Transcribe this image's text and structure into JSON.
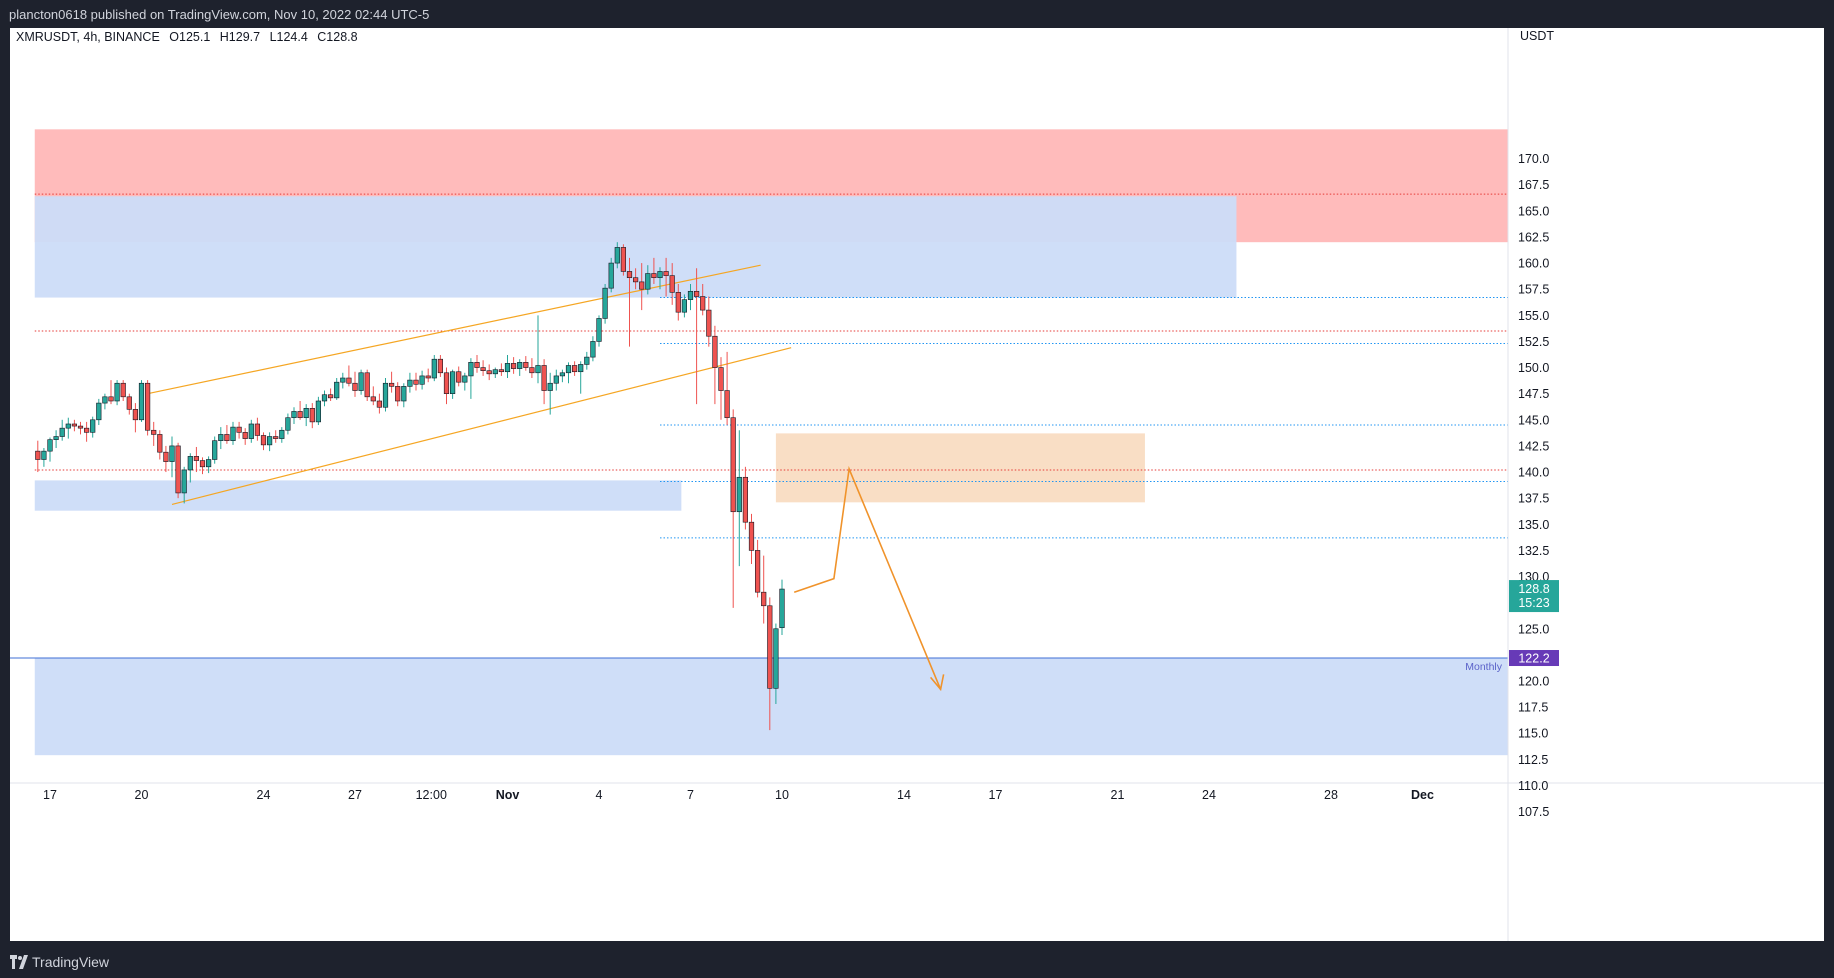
{
  "header": {
    "publish_line": "plancton0618 published on TradingView.com, Nov 10, 2022 02:44 UTC-5"
  },
  "footer": {
    "brand": "TradingView"
  },
  "legend": {
    "symbol": "XMRUSDT, 4h, BINANCE",
    "open": "O125.1",
    "high": "H129.7",
    "low": "L124.4",
    "close": "C128.8"
  },
  "chart_data": {
    "type": "candlestick",
    "symbol": "XMRUSDT",
    "interval": "4h",
    "exchange": "BINANCE",
    "currency_label": "USDT",
    "ylim": [
      104.5,
      172.8
    ],
    "y_ticks": [
      "107.5",
      "110.0",
      "112.5",
      "115.0",
      "117.5",
      "120.0",
      "122.5",
      "125.0",
      "127.5",
      "130.0",
      "132.5",
      "135.0",
      "137.5",
      "140.0",
      "142.5",
      "145.0",
      "147.5",
      "150.0",
      "152.5",
      "155.0",
      "157.5",
      "160.0",
      "162.5",
      "165.0",
      "167.5",
      "170.0"
    ],
    "x_ticks": [
      {
        "label": "17",
        "day": 0
      },
      {
        "label": "20",
        "day": 3
      },
      {
        "label": "24",
        "day": 7
      },
      {
        "label": "27",
        "day": 10
      },
      {
        "label": "12:00",
        "day": 12.5
      },
      {
        "label": "Nov",
        "day": 15
      },
      {
        "label": "4",
        "day": 18
      },
      {
        "label": "7",
        "day": 21
      },
      {
        "label": "10",
        "day": 24
      },
      {
        "label": "14",
        "day": 28
      },
      {
        "label": "17",
        "day": 31
      },
      {
        "label": "21",
        "day": 35
      },
      {
        "label": "24",
        "day": 38
      },
      {
        "label": "28",
        "day": 42
      },
      {
        "label": "Dec",
        "day": 45
      }
    ],
    "current_price": {
      "value": 128.8,
      "label": "128.8",
      "countdown": "15:23",
      "color": "#26a69a"
    },
    "monthly_level": {
      "value": 122.2,
      "label": "122.2",
      "name": "Monthly",
      "color": "#673ab7"
    },
    "zones": [
      {
        "y1": 162.0,
        "y2": 172.8,
        "d1": -0.5,
        "d2": 48.4,
        "color": "#ffb7b7"
      },
      {
        "y1": 156.7,
        "y2": 166.4,
        "d1": -0.5,
        "d2": 38.9,
        "color": "#ccdcf8"
      },
      {
        "y1": 136.3,
        "y2": 139.2,
        "d1": -0.5,
        "d2": 20.7,
        "color": "#ccdcf8"
      },
      {
        "y1": 112.9,
        "y2": 122.2,
        "d1": -0.5,
        "d2": 48.4,
        "color": "#ccdcf8"
      },
      {
        "y1": 137.1,
        "y2": 143.7,
        "d1": 23.8,
        "d2": 35.9,
        "color": "#f9dcc2"
      }
    ],
    "levels": [
      {
        "y": 166.6,
        "d1": -0.5,
        "style": "dotted",
        "color": "#e53935"
      },
      {
        "y": 153.5,
        "d1": -0.5,
        "style": "dotted",
        "color": "#e53935"
      },
      {
        "y": 140.2,
        "d1": -0.5,
        "style": "dotted",
        "color": "#e53935"
      },
      {
        "y": 156.7,
        "d1": 20.0,
        "style": "dotted",
        "color": "#2196f3"
      },
      {
        "y": 152.3,
        "d1": 20.0,
        "style": "dotted",
        "color": "#2196f3"
      },
      {
        "y": 144.5,
        "d1": 20.0,
        "style": "dotted",
        "color": "#2196f3"
      },
      {
        "y": 139.1,
        "d1": 20.0,
        "style": "dotted",
        "color": "#2196f3"
      },
      {
        "y": 133.7,
        "d1": 20.0,
        "style": "dotted",
        "color": "#2196f3"
      }
    ],
    "channel_lines": [
      {
        "d1": 3.2,
        "y1": 147.5,
        "d2": 23.3,
        "y2": 159.8
      },
      {
        "d1": 4.0,
        "y1": 136.9,
        "d2": 24.3,
        "y2": 151.9
      }
    ],
    "projection_path": [
      [
        24.4,
        128.5
      ],
      [
        25.7,
        129.8
      ],
      [
        26.2,
        140.3
      ],
      [
        29.2,
        119.2
      ]
    ],
    "candles": [
      [
        -0.4,
        142.0,
        143.0,
        140.0,
        141.2
      ],
      [
        -0.2,
        141.2,
        142.3,
        140.5,
        142.0
      ],
      [
        0.0,
        142.0,
        143.3,
        141.0,
        143.1
      ],
      [
        0.2,
        143.1,
        144.0,
        142.3,
        143.4
      ],
      [
        0.4,
        143.4,
        145.0,
        143.0,
        144.2
      ],
      [
        0.6,
        144.2,
        145.2,
        143.2,
        144.6
      ],
      [
        0.8,
        144.6,
        145.0,
        143.9,
        144.4
      ],
      [
        1.0,
        144.4,
        144.8,
        143.6,
        144.2
      ],
      [
        1.2,
        144.2,
        144.8,
        142.9,
        143.8
      ],
      [
        1.4,
        143.8,
        145.3,
        143.3,
        145.0
      ],
      [
        1.6,
        145.0,
        147.0,
        144.5,
        146.6
      ],
      [
        1.8,
        146.6,
        147.5,
        146.0,
        147.2
      ],
      [
        2.0,
        147.2,
        148.8,
        146.5,
        146.8
      ],
      [
        2.2,
        146.8,
        148.8,
        146.4,
        148.5
      ],
      [
        2.4,
        148.5,
        148.8,
        146.8,
        147.2
      ],
      [
        2.6,
        147.2,
        147.5,
        145.5,
        146.0
      ],
      [
        2.8,
        146.0,
        146.6,
        143.8,
        145.0
      ],
      [
        3.0,
        145.0,
        148.8,
        144.8,
        148.5
      ],
      [
        3.2,
        148.5,
        148.8,
        143.5,
        144.0
      ],
      [
        3.4,
        144.0,
        144.8,
        142.5,
        143.6
      ],
      [
        3.6,
        143.6,
        144.0,
        141.2,
        141.9
      ],
      [
        3.8,
        141.9,
        142.5,
        140.0,
        141.0
      ],
      [
        4.0,
        141.0,
        143.4,
        139.5,
        142.5
      ],
      [
        4.2,
        142.5,
        142.8,
        137.5,
        138.0
      ],
      [
        4.4,
        138.0,
        140.5,
        137.0,
        140.2
      ],
      [
        4.6,
        140.2,
        141.8,
        139.0,
        141.5
      ],
      [
        4.8,
        141.5,
        142.4,
        140.0,
        141.1
      ],
      [
        5.0,
        141.1,
        141.4,
        139.8,
        140.5
      ],
      [
        5.2,
        140.5,
        141.5,
        139.9,
        141.2
      ],
      [
        5.4,
        141.2,
        143.4,
        140.8,
        143.0
      ],
      [
        5.6,
        143.0,
        144.3,
        142.2,
        143.6
      ],
      [
        5.8,
        143.6,
        144.5,
        142.7,
        143.0
      ],
      [
        6.0,
        143.0,
        144.8,
        142.6,
        144.3
      ],
      [
        6.2,
        144.3,
        144.8,
        143.2,
        143.8
      ],
      [
        6.4,
        143.8,
        144.2,
        142.6,
        143.2
      ],
      [
        6.6,
        143.2,
        145.0,
        142.8,
        144.6
      ],
      [
        6.8,
        144.6,
        145.2,
        143.0,
        143.5
      ],
      [
        7.0,
        143.5,
        143.8,
        142.1,
        142.6
      ],
      [
        7.2,
        142.6,
        143.8,
        142.0,
        143.4
      ],
      [
        7.4,
        143.4,
        144.0,
        142.8,
        143.2
      ],
      [
        7.6,
        143.2,
        144.3,
        142.8,
        144.0
      ],
      [
        7.8,
        144.0,
        145.6,
        143.6,
        145.2
      ],
      [
        8.0,
        145.2,
        146.2,
        144.6,
        145.8
      ],
      [
        8.2,
        145.8,
        146.8,
        145.0,
        145.2
      ],
      [
        8.4,
        145.2,
        146.5,
        144.4,
        146.1
      ],
      [
        8.6,
        146.1,
        146.6,
        144.2,
        144.8
      ],
      [
        8.8,
        144.8,
        147.2,
        144.5,
        146.8
      ],
      [
        9.0,
        146.8,
        147.8,
        146.3,
        147.4
      ],
      [
        9.2,
        147.4,
        148.0,
        146.8,
        147.1
      ],
      [
        9.4,
        147.1,
        149.0,
        146.9,
        148.6
      ],
      [
        9.6,
        148.6,
        149.5,
        148.0,
        149.0
      ],
      [
        9.8,
        149.0,
        150.2,
        148.2,
        148.5
      ],
      [
        10.0,
        148.5,
        149.6,
        147.2,
        147.8
      ],
      [
        10.2,
        147.8,
        149.8,
        147.4,
        149.5
      ],
      [
        10.4,
        149.5,
        149.8,
        146.8,
        147.2
      ],
      [
        10.6,
        147.2,
        148.2,
        146.4,
        146.8
      ],
      [
        10.8,
        146.8,
        147.5,
        145.6,
        146.2
      ],
      [
        11.0,
        146.2,
        149.0,
        145.8,
        148.5
      ],
      [
        11.2,
        148.5,
        149.6,
        147.6,
        148.2
      ],
      [
        11.4,
        148.2,
        148.6,
        146.3,
        146.8
      ],
      [
        11.6,
        146.8,
        148.5,
        146.2,
        148.2
      ],
      [
        11.8,
        148.2,
        149.5,
        147.6,
        148.8
      ],
      [
        12.0,
        148.8,
        149.5,
        147.8,
        148.4
      ],
      [
        12.2,
        148.4,
        149.7,
        147.9,
        149.2
      ],
      [
        12.4,
        149.2,
        149.9,
        148.6,
        149.0
      ],
      [
        12.6,
        149.0,
        151.2,
        148.7,
        150.8
      ],
      [
        12.8,
        150.8,
        151.2,
        149.1,
        149.5
      ],
      [
        13.0,
        149.5,
        150.0,
        146.5,
        147.5
      ],
      [
        13.2,
        147.5,
        149.8,
        147.0,
        149.6
      ],
      [
        13.4,
        149.6,
        150.1,
        148.2,
        148.6
      ],
      [
        13.6,
        148.6,
        149.5,
        147.8,
        149.2
      ],
      [
        13.8,
        149.2,
        150.9,
        147.0,
        150.5
      ],
      [
        14.0,
        150.5,
        151.2,
        149.5,
        150.0
      ],
      [
        14.2,
        150.0,
        150.7,
        149.2,
        149.7
      ],
      [
        14.4,
        149.7,
        150.3,
        148.8,
        149.4
      ],
      [
        14.6,
        149.4,
        150.0,
        149.0,
        149.8
      ],
      [
        14.8,
        149.8,
        150.4,
        149.2,
        149.6
      ],
      [
        15.0,
        149.6,
        151.2,
        149.0,
        150.4
      ],
      [
        15.2,
        150.4,
        151.0,
        149.4,
        149.9
      ],
      [
        15.4,
        149.9,
        150.8,
        149.2,
        150.5
      ],
      [
        15.6,
        150.5,
        151.1,
        149.7,
        150.0
      ],
      [
        15.8,
        150.0,
        150.9,
        149.0,
        149.5
      ],
      [
        16.0,
        149.5,
        155.0,
        148.5,
        150.2
      ],
      [
        16.2,
        150.2,
        150.8,
        146.5,
        147.8
      ],
      [
        16.4,
        147.8,
        149.5,
        145.5,
        148.5
      ],
      [
        16.6,
        148.5,
        149.8,
        147.8,
        149.2
      ],
      [
        16.8,
        149.2,
        149.8,
        148.6,
        149.5
      ],
      [
        17.0,
        149.5,
        150.5,
        148.5,
        150.2
      ],
      [
        17.2,
        150.2,
        150.6,
        149.2,
        149.6
      ],
      [
        17.4,
        149.6,
        150.6,
        147.5,
        150.3
      ],
      [
        17.6,
        150.3,
        151.5,
        149.8,
        151.0
      ],
      [
        17.8,
        151.0,
        153.0,
        150.6,
        152.5
      ],
      [
        18.0,
        152.5,
        155.0,
        152.0,
        154.7
      ],
      [
        18.2,
        154.7,
        158.0,
        154.2,
        157.6
      ],
      [
        18.4,
        157.6,
        160.5,
        157.2,
        160.0
      ],
      [
        18.6,
        160.0,
        162.0,
        159.5,
        161.5
      ],
      [
        18.8,
        161.5,
        161.8,
        158.8,
        159.2
      ],
      [
        19.0,
        159.2,
        160.5,
        152.0,
        158.6
      ],
      [
        19.2,
        158.6,
        159.5,
        157.5,
        158.2
      ],
      [
        19.4,
        158.2,
        160.0,
        155.5,
        157.5
      ],
      [
        19.6,
        157.5,
        159.8,
        157.0,
        159.0
      ],
      [
        19.8,
        159.0,
        160.5,
        158.0,
        158.6
      ],
      [
        20.0,
        158.6,
        159.6,
        157.5,
        159.2
      ],
      [
        20.2,
        159.2,
        160.5,
        156.8,
        158.8
      ],
      [
        20.4,
        158.8,
        160.0,
        156.0,
        157.2
      ],
      [
        20.6,
        157.2,
        158.0,
        154.5,
        155.3
      ],
      [
        20.8,
        155.3,
        157.0,
        154.8,
        156.5
      ],
      [
        21.0,
        156.5,
        158.0,
        155.5,
        157.3
      ],
      [
        21.2,
        157.3,
        159.5,
        146.5,
        156.8
      ],
      [
        21.4,
        156.8,
        158.0,
        155.0,
        155.5
      ],
      [
        21.6,
        155.5,
        156.8,
        152.0,
        153.0
      ],
      [
        21.8,
        153.0,
        154.0,
        146.5,
        150.0
      ],
      [
        22.0,
        150.0,
        151.0,
        145.0,
        147.8
      ],
      [
        22.2,
        147.8,
        151.5,
        144.5,
        145.2
      ],
      [
        22.4,
        145.2,
        146.0,
        127.0,
        136.2
      ],
      [
        22.6,
        136.2,
        144.0,
        131.0,
        139.5
      ],
      [
        22.8,
        139.5,
        140.5,
        134.5,
        135.2
      ],
      [
        23.0,
        135.2,
        136.0,
        131.2,
        132.5
      ],
      [
        23.2,
        132.5,
        133.5,
        128.0,
        128.5
      ],
      [
        23.4,
        128.5,
        132.0,
        125.5,
        127.2
      ],
      [
        23.6,
        127.2,
        128.0,
        115.3,
        119.3
      ],
      [
        23.8,
        119.3,
        125.5,
        117.8,
        125.0
      ],
      [
        24.0,
        125.1,
        129.7,
        124.4,
        128.8
      ]
    ]
  }
}
